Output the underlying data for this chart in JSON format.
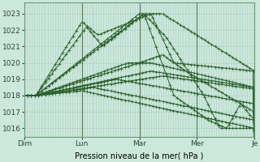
{
  "xlabel": "Pression niveau de la mer( hPa )",
  "bg_color": "#cce8dc",
  "grid_color_major": "#aacfbf",
  "grid_color_minor": "#c0ddd0",
  "line_color": "#2a5e2a",
  "ylim": [
    1015.5,
    1023.7
  ],
  "yticks": [
    1016,
    1017,
    1018,
    1019,
    1020,
    1021,
    1022,
    1023
  ],
  "xtick_labels": [
    "Dim",
    "Lun",
    "Mar",
    "Mer",
    "Je"
  ],
  "xtick_positions": [
    0,
    0.25,
    0.5,
    0.75,
    1.0
  ],
  "line_width": 0.7,
  "marker_size": 2.2
}
